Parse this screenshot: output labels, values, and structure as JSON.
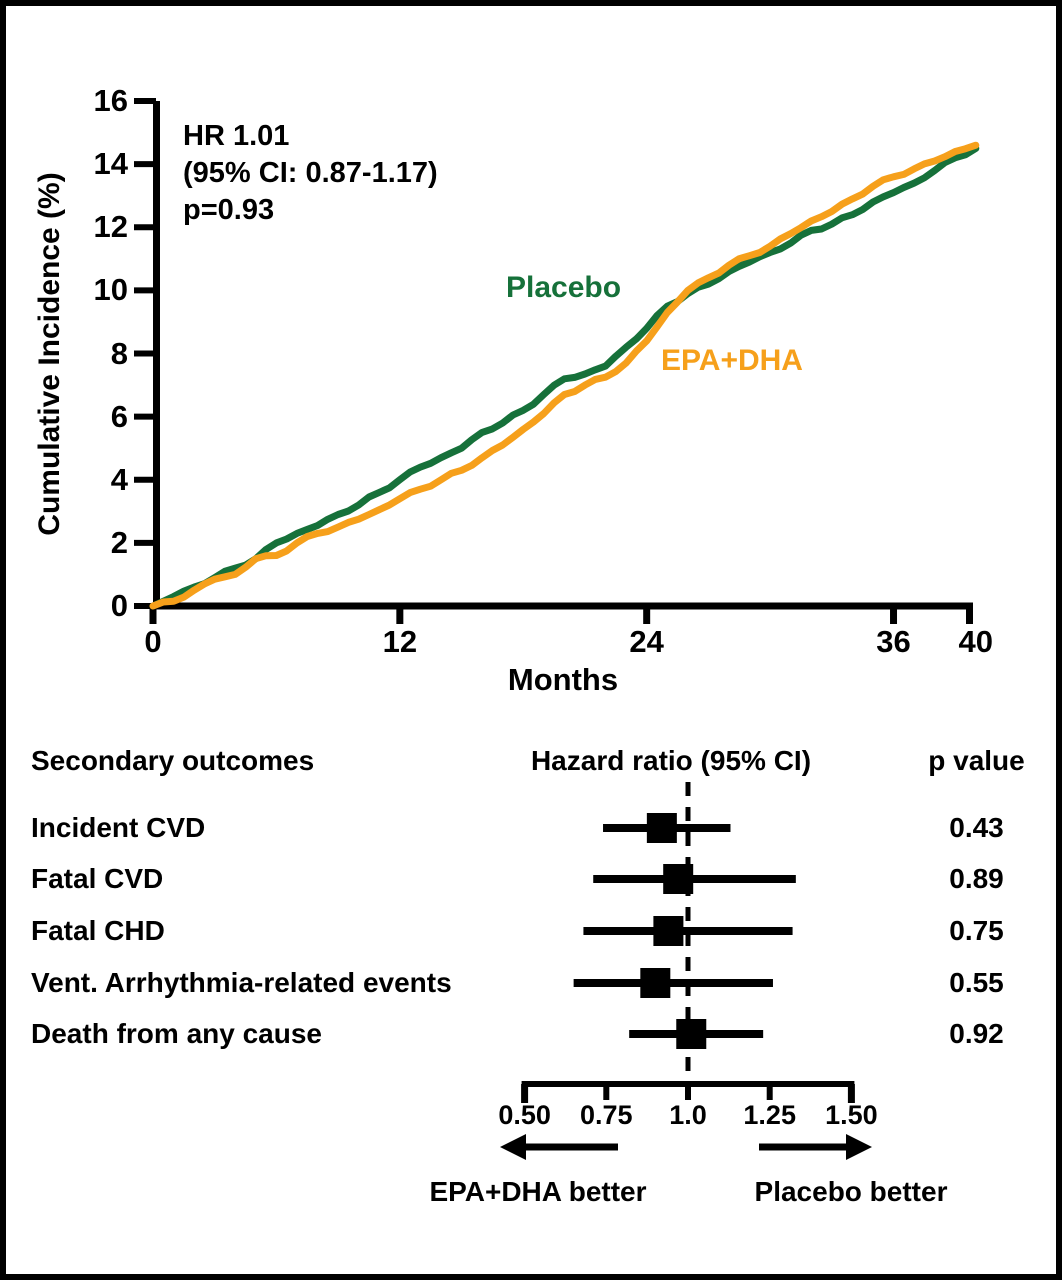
{
  "figure": {
    "background": "#ffffff",
    "border_color": "#000000",
    "text_color": "#000000"
  },
  "chart_data": [
    {
      "type": "line",
      "title": "",
      "xlabel": "Months",
      "ylabel": "Cumulative Incidence (%)",
      "xlim": [
        0,
        40
      ],
      "ylim": [
        0,
        16
      ],
      "xticks": [
        0,
        12,
        24,
        36,
        40
      ],
      "yticks": [
        0,
        2,
        4,
        6,
        8,
        10,
        12,
        14,
        16
      ],
      "grid": false,
      "annotation": {
        "lines": [
          "HR 1.01",
          "(95% CI: 0.87-1.17)",
          "p=0.93"
        ]
      },
      "x_months": [
        0,
        1,
        2,
        3,
        4,
        5,
        6,
        7,
        8,
        9,
        10,
        11,
        12,
        13,
        14,
        15,
        16,
        17,
        18,
        19,
        20,
        21,
        22,
        23,
        24,
        25,
        26,
        27,
        28,
        29,
        30,
        31,
        32,
        33,
        34,
        35,
        36,
        37,
        38,
        39,
        40
      ],
      "series": [
        {
          "name": "Placebo",
          "color": "#16713a",
          "values": [
            0,
            0.3,
            0.6,
            0.9,
            1.2,
            1.5,
            2.0,
            2.3,
            2.55,
            2.9,
            3.2,
            3.6,
            4.0,
            4.4,
            4.7,
            5.0,
            5.5,
            5.8,
            6.2,
            6.7,
            7.2,
            7.35,
            7.6,
            8.2,
            8.8,
            9.5,
            9.9,
            10.2,
            10.6,
            10.9,
            11.2,
            11.5,
            11.9,
            12.1,
            12.4,
            12.8,
            13.1,
            13.4,
            13.8,
            14.2,
            14.5
          ]
        },
        {
          "name": "EPA+DHA",
          "color": "#f6a01b",
          "values": [
            0,
            0.15,
            0.5,
            0.85,
            1.0,
            1.5,
            1.6,
            2.0,
            2.3,
            2.5,
            2.75,
            3.05,
            3.4,
            3.7,
            4.0,
            4.3,
            4.7,
            5.1,
            5.6,
            6.1,
            6.7,
            7.0,
            7.25,
            7.7,
            8.4,
            9.3,
            10.0,
            10.4,
            10.8,
            11.1,
            11.4,
            11.8,
            12.2,
            12.5,
            12.9,
            13.3,
            13.6,
            13.85,
            14.1,
            14.4,
            14.6
          ]
        }
      ]
    },
    {
      "type": "forest",
      "col_headers": [
        "Secondary outcomes",
        "Hazard ratio (95% CI)",
        "p value"
      ],
      "axis": {
        "range": [
          0.5,
          1.5
        ],
        "reference": 1.0,
        "ticks": [
          0.5,
          0.75,
          1.0,
          1.25,
          1.5
        ],
        "tick_labels": [
          "0.50",
          "0.75",
          "1.0",
          "1.25",
          "1.50"
        ]
      },
      "rows": [
        {
          "label": "Incident CVD",
          "hr": 0.92,
          "ci_low": 0.74,
          "ci_high": 1.13,
          "p": "0.43"
        },
        {
          "label": "Fatal CVD",
          "hr": 0.97,
          "ci_low": 0.71,
          "ci_high": 1.33,
          "p": "0.89"
        },
        {
          "label": "Fatal CHD",
          "hr": 0.94,
          "ci_low": 0.68,
          "ci_high": 1.32,
          "p": "0.75"
        },
        {
          "label": "Vent. Arrhythmia-related events",
          "hr": 0.9,
          "ci_low": 0.65,
          "ci_high": 1.26,
          "p": "0.55"
        },
        {
          "label": "Death from any cause",
          "hr": 1.01,
          "ci_low": 0.82,
          "ci_high": 1.23,
          "p": "0.92"
        }
      ],
      "direction_labels": {
        "left": "EPA+DHA better",
        "right": "Placebo better"
      },
      "marker_color": "#000000"
    }
  ]
}
